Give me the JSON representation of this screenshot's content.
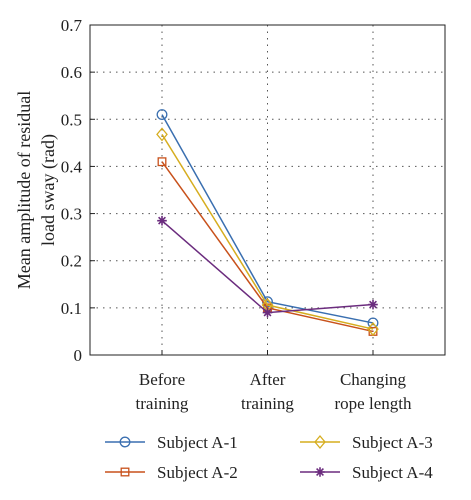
{
  "chart_data": {
    "type": "line",
    "categories": [
      [
        "Before",
        "training"
      ],
      [
        "After",
        "training"
      ],
      [
        "Changing",
        "rope length"
      ]
    ],
    "ylabel": [
      "Mean amplitude of residual",
      "load sway (rad)"
    ],
    "ylim": [
      0,
      0.7
    ],
    "yticks": [
      "0",
      "0.1",
      "0.2",
      "0.3",
      "0.4",
      "0.5",
      "0.6",
      "0.7"
    ],
    "grid": true,
    "legend_position": "bottom",
    "series": [
      {
        "name": "Subject A-1",
        "color": "#3a6fb0",
        "marker": "circle",
        "values": [
          0.51,
          0.113,
          0.068
        ]
      },
      {
        "name": "Subject A-2",
        "color": "#c8511b",
        "marker": "square",
        "values": [
          0.41,
          0.1,
          0.05
        ]
      },
      {
        "name": "Subject A-3",
        "color": "#d6ad1f",
        "marker": "diamond",
        "values": [
          0.468,
          0.106,
          0.055
        ]
      },
      {
        "name": "Subject A-4",
        "color": "#6b2c7e",
        "marker": "star",
        "values": [
          0.285,
          0.09,
          0.107
        ]
      }
    ]
  }
}
